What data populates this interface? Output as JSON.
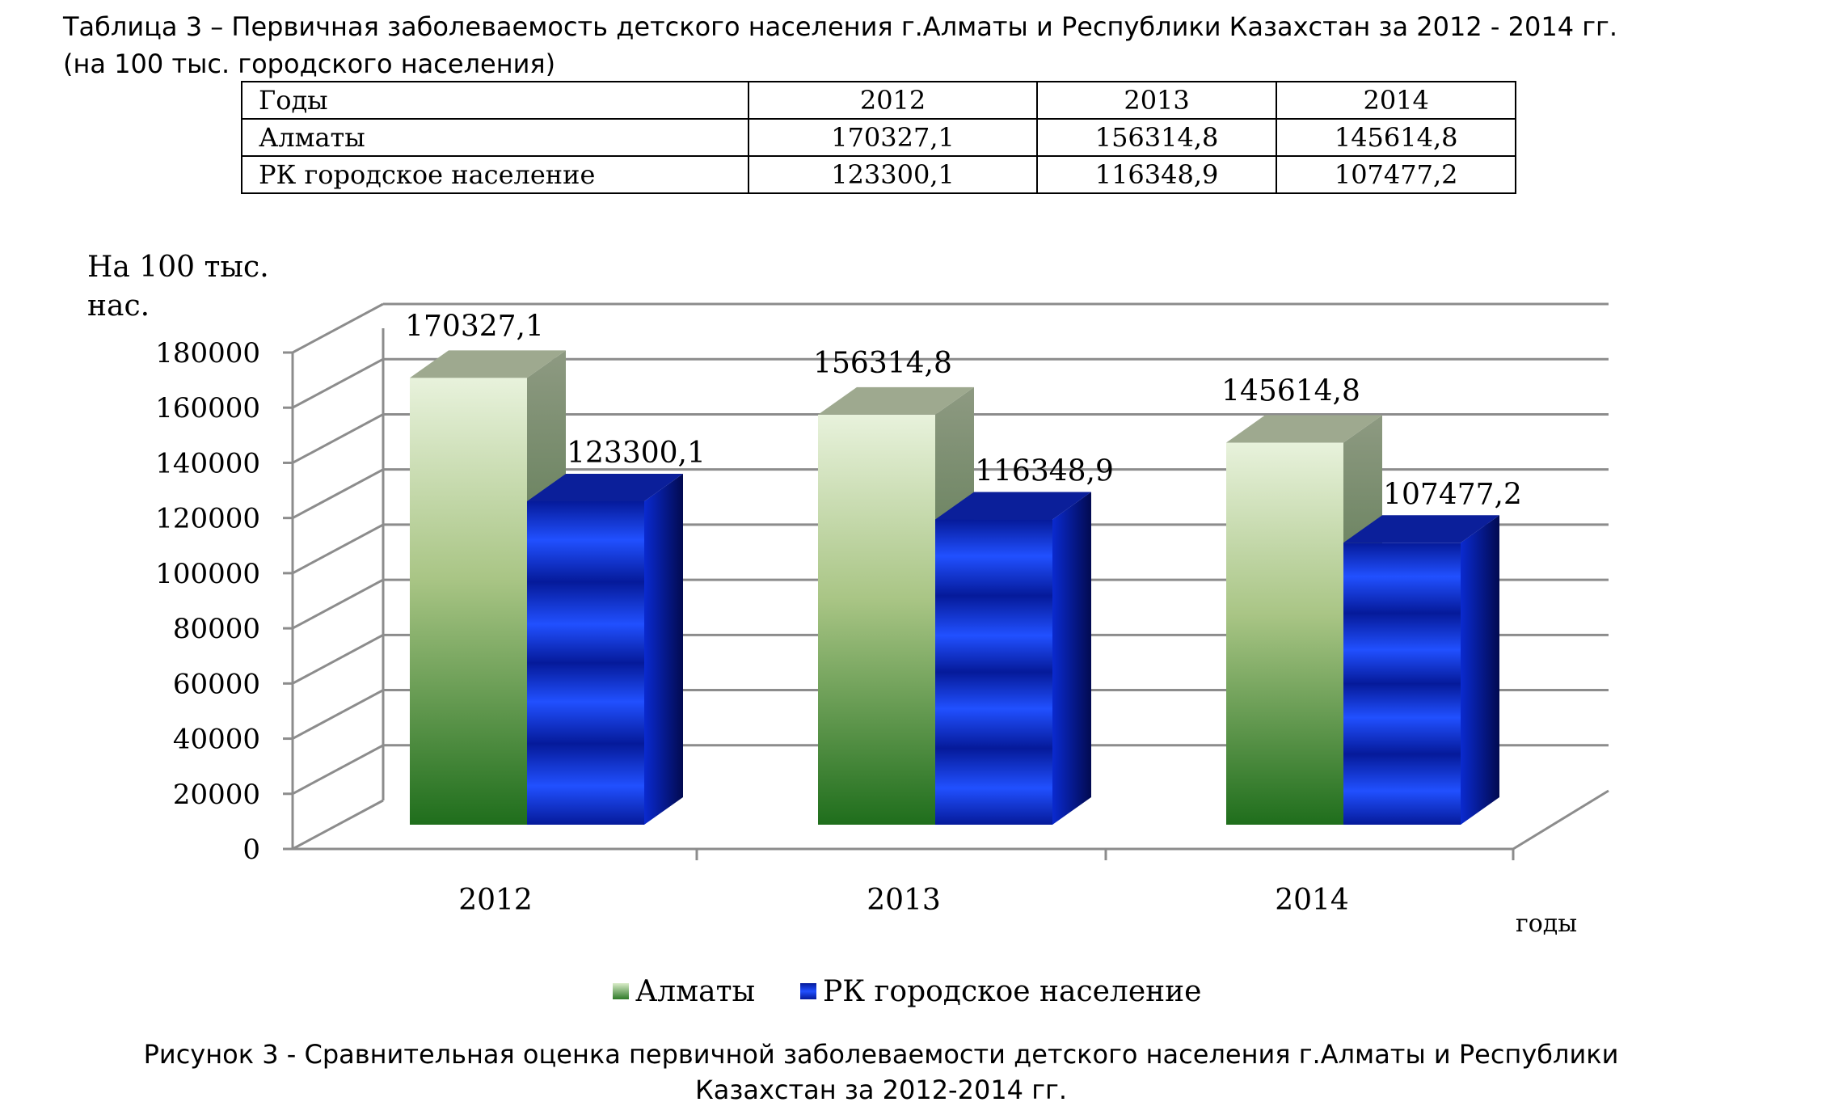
{
  "table": {
    "caption_line1": "Таблица 3 – Первичная заболеваемость детского населения г.Алматы и Республики Казахстан за 2012 - 2014 гг.",
    "caption_line2": "(на 100 тыс. городского населения)",
    "header": [
      "Годы",
      "2012",
      "2013",
      "2014"
    ],
    "rows": [
      [
        "Алматы",
        "170327,1",
        "156314,8",
        "145614,8"
      ],
      [
        "РК городское население",
        "123300,1",
        "116348,9",
        "107477,2"
      ]
    ]
  },
  "chart_data": {
    "type": "bar",
    "style": "3d-clustered-column",
    "categories": [
      "2012",
      "2013",
      "2014"
    ],
    "series": [
      {
        "name": "Алматы",
        "values": [
          170327.1,
          156314.8,
          145614.8
        ],
        "labels": [
          "170327,1",
          "156314,8",
          "145614,8"
        ],
        "color": "#7fb060"
      },
      {
        "name": "РК городское население",
        "values": [
          123300.1,
          116348.9,
          107477.2
        ],
        "labels": [
          "123300,1",
          "116348,9",
          "107477,2"
        ],
        "color": "#1a3fe0"
      }
    ],
    "ylabel_line1": "На 100 тыс.",
    "ylabel_line2": "нас.",
    "xlabel": "годы",
    "ylim": [
      0,
      180000
    ],
    "yticks": [
      "0",
      "20000",
      "40000",
      "60000",
      "80000",
      "100000",
      "120000",
      "140000",
      "160000",
      "180000"
    ],
    "grid": true,
    "legend_position": "bottom"
  },
  "figure_caption_line1": "Рисунок 3 - Сравнительная оценка первичной заболеваемости детского  населения г.Алматы и Республики",
  "figure_caption_line2": "Казахстан за 2012-2014 гг."
}
